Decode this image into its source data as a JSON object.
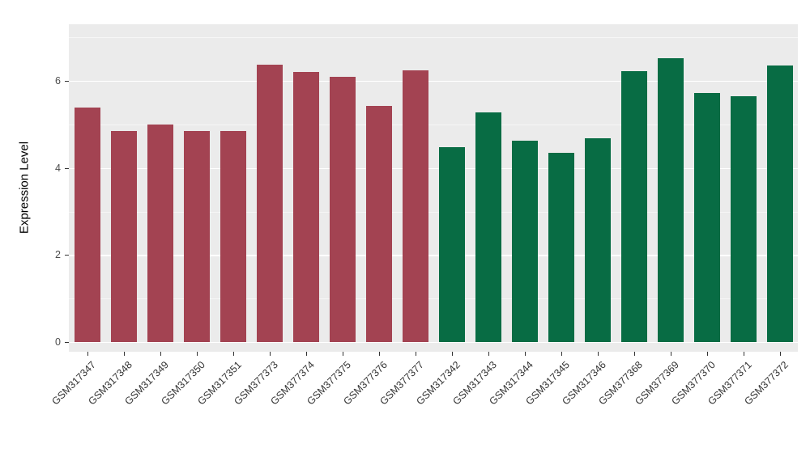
{
  "chart_data": {
    "type": "bar",
    "title": "",
    "xlabel": "",
    "ylabel": "Expression Level",
    "ylim": [
      0,
      7.3
    ],
    "yticks": [
      0,
      2,
      4,
      6
    ],
    "minor_gridlines": [
      1,
      3,
      5,
      7
    ],
    "grid": true,
    "legend_position": "none",
    "panel_background": "#EBEBEB",
    "categories": [
      "GSM317347",
      "GSM317348",
      "GSM317349",
      "GSM317350",
      "GSM317351",
      "GSM377373",
      "GSM377374",
      "GSM377375",
      "GSM377376",
      "GSM377377",
      "GSM317342",
      "GSM317343",
      "GSM317344",
      "GSM317345",
      "GSM317346",
      "GSM377368",
      "GSM377369",
      "GSM377370",
      "GSM377371",
      "GSM377372"
    ],
    "values": [
      5.39,
      4.84,
      4.99,
      4.84,
      4.85,
      6.38,
      6.2,
      6.09,
      5.43,
      6.24,
      4.47,
      5.27,
      4.62,
      4.35,
      4.68,
      6.22,
      6.53,
      5.73,
      5.64,
      6.35
    ],
    "colors": {
      "left_group": "#A34352",
      "right_group": "#086C44"
    },
    "color_split_index": 10
  }
}
